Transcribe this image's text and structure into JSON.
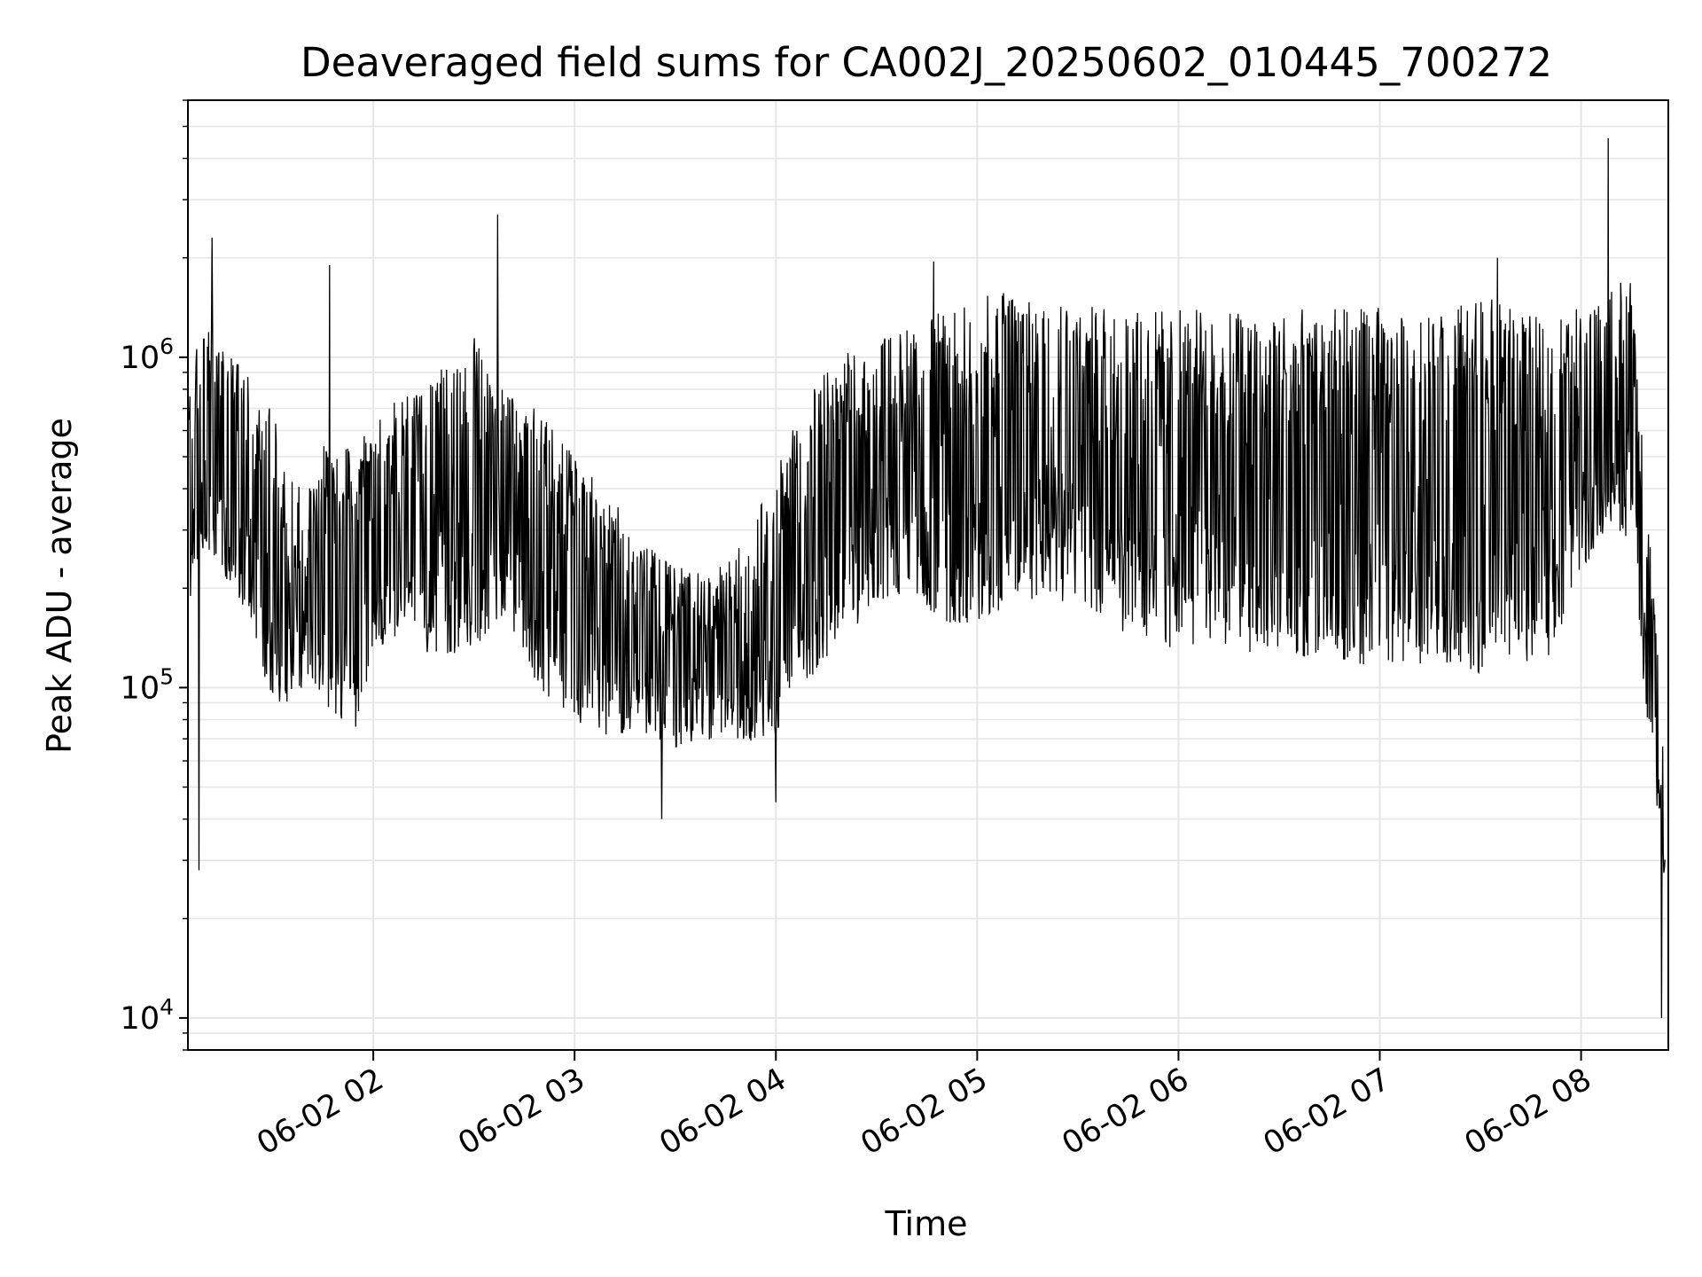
{
  "chart_data": {
    "type": "line",
    "title": "Deaveraged field sums for CA002J_20250602_010445_700272",
    "xlabel": "Time",
    "ylabel": "Peak ADU - average",
    "y_scale": "log",
    "ylim": [
      8000,
      6000000
    ],
    "xlim": [
      "2025-06-02T01:04:45",
      "2025-06-02T08:26:00"
    ],
    "x_ticks": [
      {
        "label": "06-02 02",
        "time": "2025-06-02T02:00:00"
      },
      {
        "label": "06-02 03",
        "time": "2025-06-02T03:00:00"
      },
      {
        "label": "06-02 04",
        "time": "2025-06-02T04:00:00"
      },
      {
        "label": "06-02 05",
        "time": "2025-06-02T05:00:00"
      },
      {
        "label": "06-02 06",
        "time": "2025-06-02T06:00:00"
      },
      {
        "label": "06-02 07",
        "time": "2025-06-02T07:00:00"
      },
      {
        "label": "06-02 08",
        "time": "2025-06-02T08:00:00"
      }
    ],
    "y_ticks": [
      {
        "base": "10",
        "exp": "4",
        "value": 10000
      },
      {
        "base": "10",
        "exp": "5",
        "value": 100000
      },
      {
        "base": "10",
        "exp": "6",
        "value": 1000000
      }
    ],
    "grid": true,
    "line_color": "#000000",
    "grid_color": "#e6e6e6",
    "series": [
      {
        "x": [
          "2025-06-02T01:05:00",
          "2025-06-02T01:10:00",
          "2025-06-02T01:15:00",
          "2025-06-02T01:20:00",
          "2025-06-02T01:25:00",
          "2025-06-02T01:30:00",
          "2025-06-02T01:35:00",
          "2025-06-02T01:40:00",
          "2025-06-02T01:45:00",
          "2025-06-02T01:50:00",
          "2025-06-02T01:55:00",
          "2025-06-02T02:00:00",
          "2025-06-02T02:10:00",
          "2025-06-02T02:20:00",
          "2025-06-02T02:30:00",
          "2025-06-02T02:40:00",
          "2025-06-02T02:50:00",
          "2025-06-02T03:00:00",
          "2025-06-02T03:10:00",
          "2025-06-02T03:20:00",
          "2025-06-02T03:30:00",
          "2025-06-02T03:40:00",
          "2025-06-02T03:50:00",
          "2025-06-02T04:00:00",
          "2025-06-02T04:10:00",
          "2025-06-02T04:20:00",
          "2025-06-02T04:30:00",
          "2025-06-02T04:40:00",
          "2025-06-02T04:50:00",
          "2025-06-02T05:00:00",
          "2025-06-02T05:10:00",
          "2025-06-02T05:20:00",
          "2025-06-02T05:30:00",
          "2025-06-02T05:40:00",
          "2025-06-02T05:50:00",
          "2025-06-02T06:00:00",
          "2025-06-02T06:10:00",
          "2025-06-02T06:20:00",
          "2025-06-02T06:30:00",
          "2025-06-02T06:40:00",
          "2025-06-02T06:50:00",
          "2025-06-02T07:00:00",
          "2025-06-02T07:10:00",
          "2025-06-02T07:20:00",
          "2025-06-02T07:30:00",
          "2025-06-02T07:40:00",
          "2025-06-02T07:50:00",
          "2025-06-02T08:00:00",
          "2025-06-02T08:05:00",
          "2025-06-02T08:10:00",
          "2025-06-02T08:15:00",
          "2025-06-02T08:20:00",
          "2025-06-02T08:25:00"
        ],
        "lo": [
          200000,
          300000,
          250000,
          200000,
          150000,
          100000,
          100000,
          110000,
          100000,
          90000,
          80000,
          150000,
          150000,
          140000,
          150000,
          180000,
          110000,
          90000,
          80000,
          80000,
          70000,
          75000,
          75000,
          80000,
          120000,
          160000,
          200000,
          220000,
          180000,
          180000,
          200000,
          220000,
          200000,
          180000,
          150000,
          150000,
          160000,
          150000,
          150000,
          140000,
          140000,
          130000,
          130000,
          140000,
          130000,
          140000,
          140000,
          250000,
          300000,
          350000,
          300000,
          80000,
          25000
        ],
        "hi": [
          800000,
          1200000,
          1000000,
          900000,
          700000,
          600000,
          400000,
          350000,
          500000,
          500000,
          450000,
          600000,
          700000,
          800000,
          1000000,
          700000,
          600000,
          450000,
          350000,
          250000,
          220000,
          200000,
          250000,
          400000,
          700000,
          900000,
          1000000,
          1100000,
          1200000,
          1300000,
          1400000,
          1400000,
          1300000,
          1200000,
          1200000,
          1200000,
          1200000,
          1200000,
          1200000,
          1200000,
          1200000,
          1200000,
          1100000,
          1200000,
          1300000,
          1200000,
          1100000,
          1300000,
          1400000,
          1600000,
          1500000,
          300000,
          60000
        ],
        "spikes": [
          {
            "time": "2025-06-02T01:08:00",
            "value": 28000
          },
          {
            "time": "2025-06-02T01:12:00",
            "value": 2300000
          },
          {
            "time": "2025-06-02T01:47:00",
            "value": 1900000
          },
          {
            "time": "2025-06-02T02:37:00",
            "value": 2700000
          },
          {
            "time": "2025-06-02T03:26:00",
            "value": 40000
          },
          {
            "time": "2025-06-02T04:00:00",
            "value": 45000
          },
          {
            "time": "2025-06-02T04:47:00",
            "value": 1950000
          },
          {
            "time": "2025-06-02T07:35:00",
            "value": 2000000
          },
          {
            "time": "2025-06-02T08:08:00",
            "value": 4600000
          },
          {
            "time": "2025-06-02T08:24:00",
            "value": 10000
          }
        ]
      }
    ]
  }
}
